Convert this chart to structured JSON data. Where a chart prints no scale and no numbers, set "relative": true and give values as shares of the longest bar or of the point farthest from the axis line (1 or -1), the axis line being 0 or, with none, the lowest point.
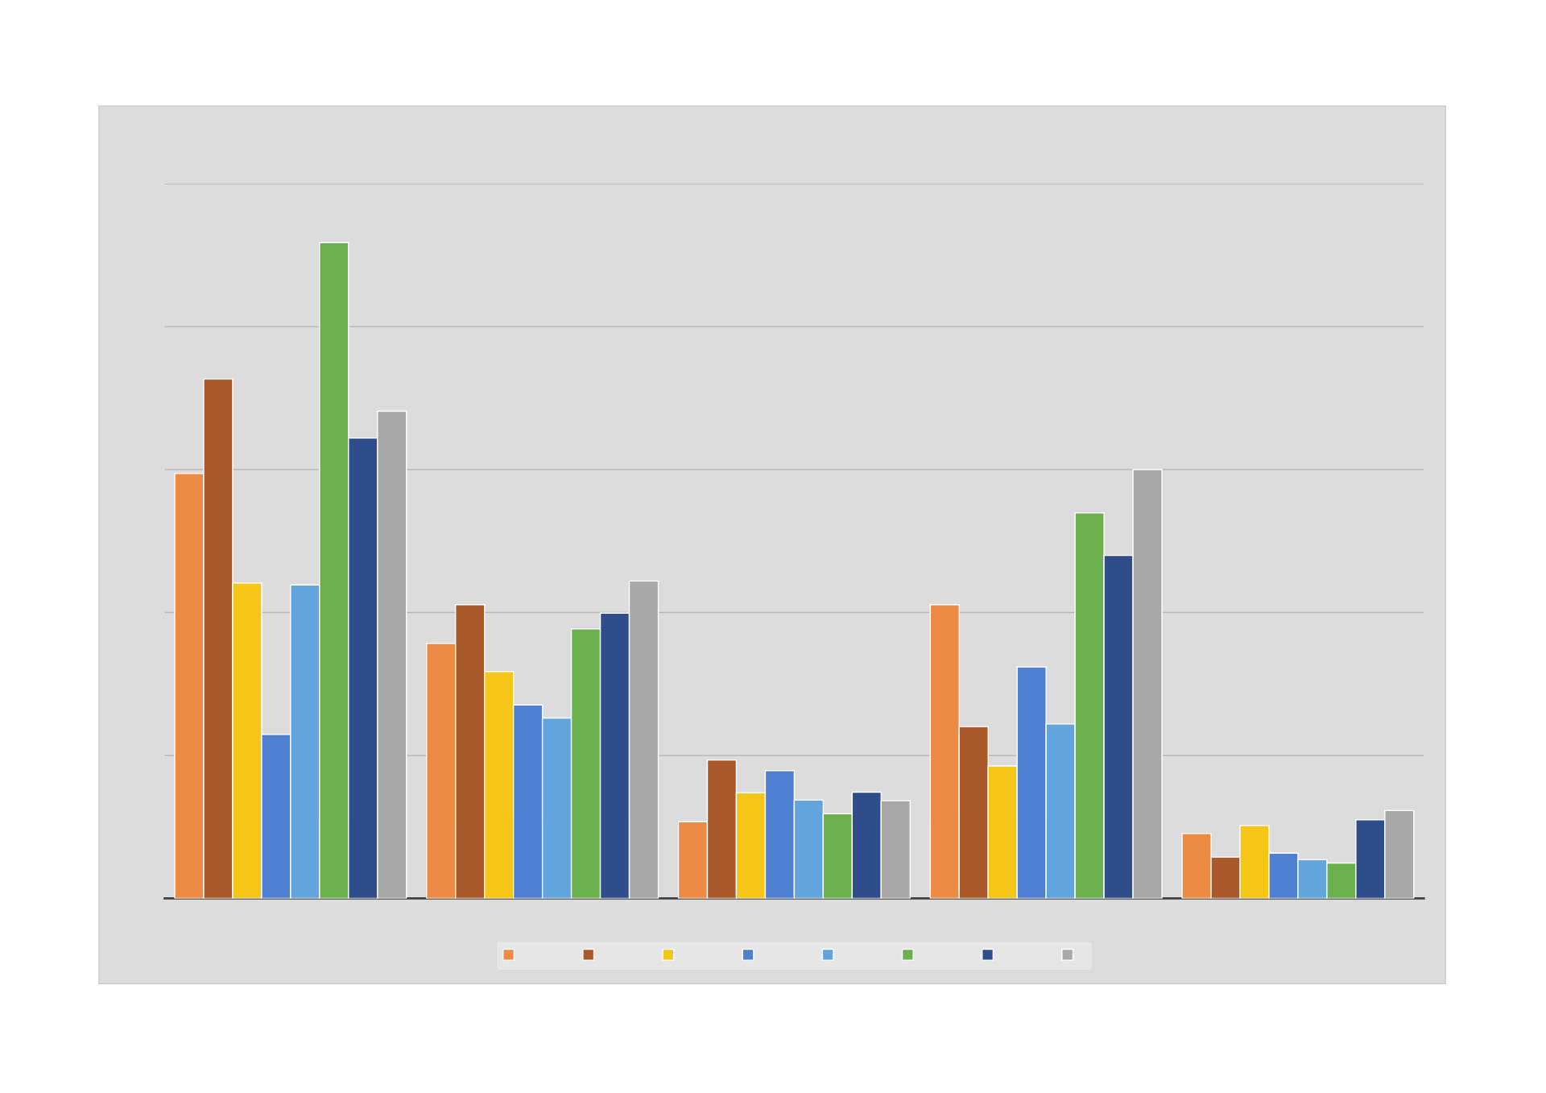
{
  "chart_data": {
    "type": "bar",
    "relative": true,
    "grid": "y",
    "categories": [
      null,
      null,
      null,
      null,
      null
    ],
    "series": [
      {
        "color": "#ed8b45",
        "values": [
          0.648,
          0.389,
          0.117,
          0.448,
          0.099
        ]
      },
      {
        "color": "#a9592a",
        "values": [
          0.792,
          0.448,
          0.211,
          0.262,
          0.063
        ]
      },
      {
        "color": "#f5c518",
        "values": [
          0.481,
          0.346,
          0.161,
          0.202,
          0.111
        ]
      },
      {
        "color": "#4f7fd0",
        "values": [
          0.25,
          0.295,
          0.195,
          0.353,
          0.069
        ]
      },
      {
        "color": "#62a4dc",
        "values": [
          0.478,
          0.275,
          0.15,
          0.266,
          0.059
        ]
      },
      {
        "color": "#6ab04c",
        "values": [
          1.0,
          0.411,
          0.129,
          0.588,
          0.054
        ]
      },
      {
        "color": "#2e4d8a",
        "values": [
          0.702,
          0.435,
          0.162,
          0.523,
          0.12
        ]
      },
      {
        "color": "#a8a8a8",
        "values": [
          0.743,
          0.484,
          0.149,
          0.654,
          0.134
        ]
      }
    ]
  }
}
